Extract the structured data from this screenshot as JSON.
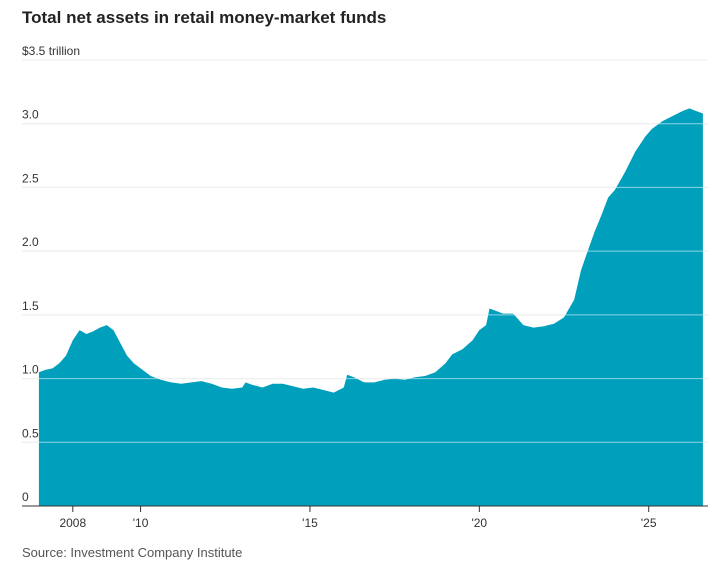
{
  "chart_data": {
    "type": "area",
    "title": "Total net assets in retail money-market funds",
    "source": "Source: Investment Company Institute",
    "y_unit_label": "$3.5 trillion",
    "y_ticks": [
      {
        "value": 0,
        "label": "0"
      },
      {
        "value": 0.5,
        "label": "0.5"
      },
      {
        "value": 1.0,
        "label": "1.0"
      },
      {
        "value": 1.5,
        "label": "1.5"
      },
      {
        "value": 2.0,
        "label": "2.0"
      },
      {
        "value": 2.5,
        "label": "2.5"
      },
      {
        "value": 3.0,
        "label": "3.0"
      },
      {
        "value": 3.5,
        "label": "$3.5 trillion"
      }
    ],
    "x_ticks": [
      {
        "value": 2008,
        "label": "2008"
      },
      {
        "value": 2010,
        "label": "'10"
      },
      {
        "value": 2015,
        "label": "'15"
      },
      {
        "value": 2020,
        "label": "'20"
      },
      {
        "value": 2025,
        "label": "'25"
      }
    ],
    "ylim": [
      0,
      3.5
    ],
    "xlim": [
      2006.5,
      2026.75
    ],
    "grid": true,
    "color": "#00a0bd",
    "x": [
      2007.0,
      2007.2,
      2007.4,
      2007.6,
      2007.8,
      2008.0,
      2008.2,
      2008.4,
      2008.6,
      2008.8,
      2009.0,
      2009.2,
      2009.4,
      2009.6,
      2009.8,
      2010.0,
      2010.3,
      2010.6,
      2010.9,
      2011.2,
      2011.5,
      2011.8,
      2012.1,
      2012.4,
      2012.7,
      2013.0,
      2013.1,
      2013.3,
      2013.6,
      2013.9,
      2014.2,
      2014.5,
      2014.8,
      2015.1,
      2015.4,
      2015.7,
      2016.0,
      2016.1,
      2016.3,
      2016.6,
      2016.9,
      2017.2,
      2017.5,
      2017.8,
      2018.1,
      2018.4,
      2018.7,
      2019.0,
      2019.2,
      2019.5,
      2019.8,
      2020.0,
      2020.2,
      2020.3,
      2020.5,
      2020.7,
      2021.0,
      2021.3,
      2021.6,
      2021.9,
      2022.2,
      2022.5,
      2022.8,
      2023.0,
      2023.2,
      2023.4,
      2023.6,
      2023.8,
      2024.0,
      2024.3,
      2024.6,
      2024.9,
      2025.1,
      2025.4,
      2025.7,
      2026.0,
      2026.2,
      2026.4,
      2026.6
    ],
    "values": [
      1.05,
      1.07,
      1.08,
      1.12,
      1.18,
      1.3,
      1.38,
      1.35,
      1.37,
      1.4,
      1.42,
      1.38,
      1.28,
      1.18,
      1.12,
      1.08,
      1.02,
      0.99,
      0.97,
      0.96,
      0.97,
      0.98,
      0.96,
      0.93,
      0.92,
      0.93,
      0.97,
      0.95,
      0.93,
      0.96,
      0.96,
      0.94,
      0.92,
      0.93,
      0.91,
      0.89,
      0.93,
      1.03,
      1.01,
      0.97,
      0.97,
      0.99,
      1.0,
      0.99,
      1.01,
      1.02,
      1.05,
      1.12,
      1.19,
      1.23,
      1.3,
      1.38,
      1.42,
      1.55,
      1.53,
      1.51,
      1.51,
      1.42,
      1.4,
      1.41,
      1.43,
      1.48,
      1.62,
      1.85,
      2.0,
      2.15,
      2.28,
      2.42,
      2.48,
      2.62,
      2.78,
      2.9,
      2.96,
      3.02,
      3.06,
      3.1,
      3.12,
      3.1,
      3.08
    ]
  }
}
